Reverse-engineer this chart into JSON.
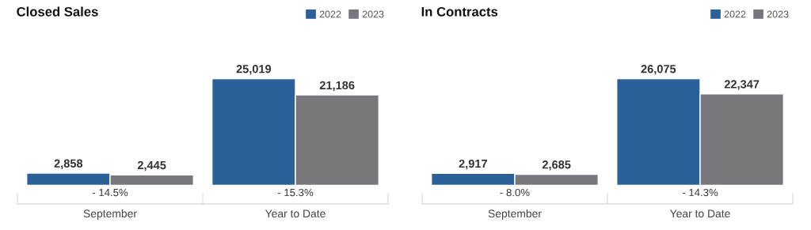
{
  "chart_data": [
    {
      "type": "bar",
      "title": "Closed Sales",
      "categories": [
        "September",
        "Year to Date"
      ],
      "series": [
        {
          "name": "2022",
          "color": "#2b6099",
          "values": [
            2858,
            25019
          ],
          "value_labels": [
            "2,858",
            "25,019"
          ]
        },
        {
          "name": "2023",
          "color": "#78777c",
          "values": [
            2445,
            21186
          ],
          "value_labels": [
            "2,445",
            "21,186"
          ]
        }
      ],
      "legend": "top right",
      "grid": false,
      "annotations": [
        "- 14.5%",
        "- 15.3%"
      ]
    },
    {
      "type": "bar",
      "title": "In Contracts",
      "categories": [
        "September",
        "Year to Date"
      ],
      "series": [
        {
          "name": "2022",
          "color": "#2b6099",
          "values": [
            2917,
            26075
          ],
          "value_labels": [
            "2,917",
            "26,075"
          ]
        },
        {
          "name": "2023",
          "color": "#78777c",
          "values": [
            2685,
            22347
          ],
          "value_labels": [
            "2,685",
            "22,347"
          ]
        }
      ],
      "legend": "top right",
      "grid": false,
      "annotations": [
        "- 8.0%",
        "- 14.3%"
      ]
    }
  ]
}
